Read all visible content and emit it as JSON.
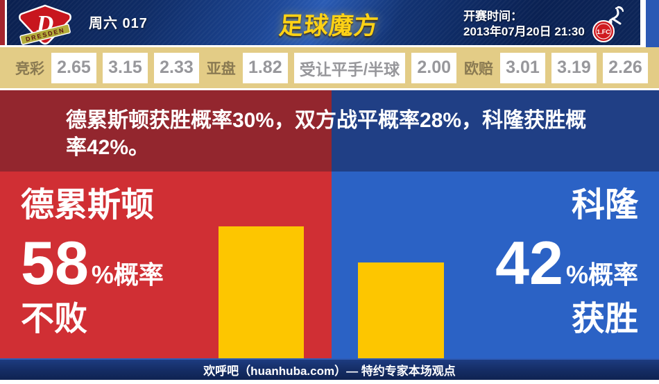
{
  "header": {
    "match_no": "周六 017",
    "site_logo": "足球魔方",
    "kickoff_label": "开赛时间：",
    "kickoff_time": "2013年07月20日 21:30",
    "home_crest_letter": "D",
    "home_crest_text": "DRESDEN",
    "away_crest_text": "1.FC"
  },
  "odds": {
    "jingcai": {
      "label": "竞彩",
      "values": [
        "2.65",
        "3.15",
        "2.33"
      ]
    },
    "yapan": {
      "label": "亚盘",
      "home": "1.82",
      "handicap": "受让平手/半球",
      "away": "2.00"
    },
    "oupei": {
      "label": "欧赔",
      "values": [
        "3.01",
        "3.19",
        "2.26"
      ]
    }
  },
  "summary": "德累斯顿获胜概率30%，双方战平概率28%，科隆获胜概率42%。",
  "panels": {
    "left": {
      "team": "德累斯顿",
      "value": "58",
      "unit": "%概率",
      "outcome": "不败"
    },
    "right": {
      "team": "科隆",
      "value": "42",
      "unit": "%概率",
      "outcome": "获胜"
    }
  },
  "footer": "欢呼吧（huanhuba.com）— 特约专家本场观点",
  "colors": {
    "panel_red": "#d02f34",
    "panel_blue": "#2b62c5",
    "summary_red": "#93262e",
    "summary_blue": "#203f85",
    "bar_yellow": "#fdc600",
    "odds_beige": "#e3cc86",
    "header_navy": "#0f2c66",
    "accent_red": "#a5242d"
  },
  "chart_data": {
    "type": "bar",
    "title": "德累斯顿获胜概率30%，双方战平概率28%，科隆获胜概率42%。",
    "categories": [
      "德累斯顿不败",
      "科隆获胜"
    ],
    "values": [
      58,
      42
    ],
    "unit": "%",
    "bar_color": "#fdc600",
    "annotations": [
      "德累斯顿 58%概率 不败",
      "科隆 42%概率 获胜"
    ],
    "probabilities": {
      "home_win_pct": 30,
      "draw_pct": 28,
      "away_win_pct": 42
    },
    "odds": {
      "jingcai_1x2": [
        2.65,
        3.15,
        2.33
      ],
      "asian_handicap": {
        "home": 1.82,
        "line": "受让平手/半球",
        "away": 2.0
      },
      "euro_1x2": [
        3.01,
        3.19,
        2.26
      ]
    },
    "legend": false,
    "axes_visible": false
  }
}
